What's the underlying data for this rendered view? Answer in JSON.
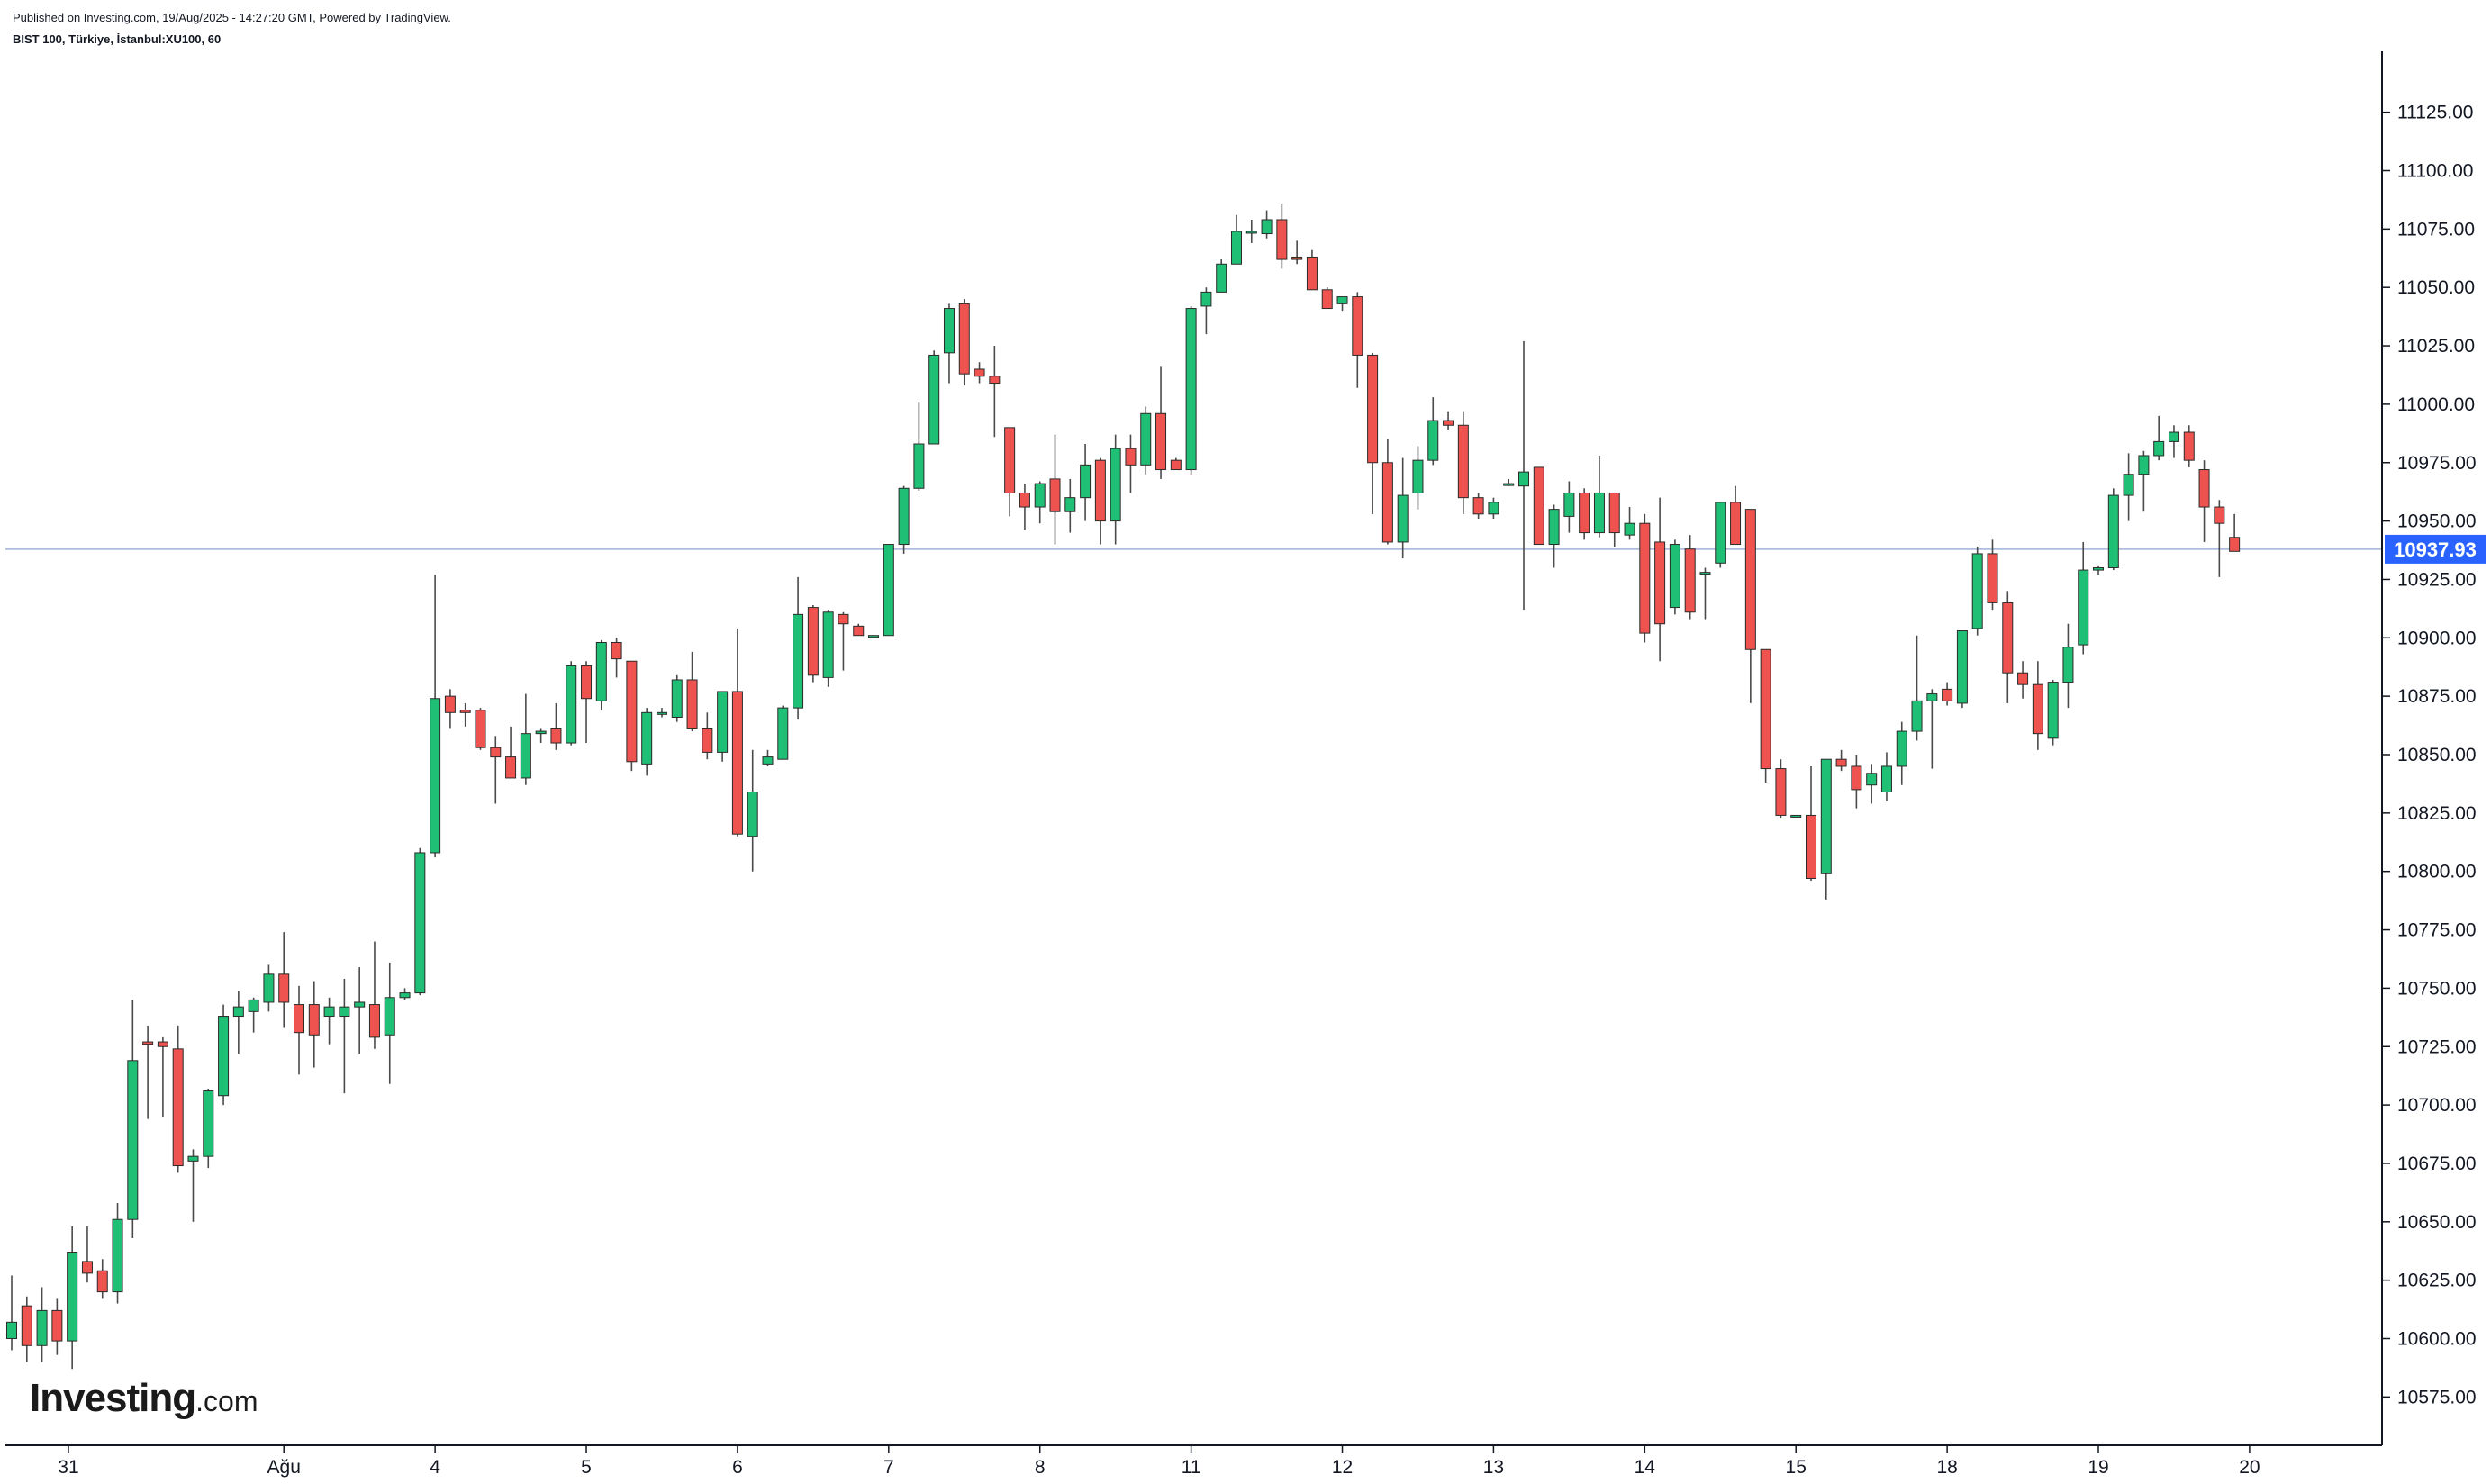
{
  "header": {
    "published": "Published on Investing.com, 19/Aug/2025 - 14:27:20 GMT, Powered by TradingView.",
    "instrument": "BIST 100, Türkiye, İstanbul:XU100, 60"
  },
  "logo": {
    "brand": "Investing",
    "suffix": ".com"
  },
  "colors": {
    "up": "#1fbf75",
    "down": "#ef5350",
    "wick": "#4a4a4a",
    "price_line": "#9fb3d9",
    "price_tag": "#2962ff"
  },
  "chart_data": {
    "type": "candlestick",
    "title": "",
    "xlabel": "",
    "ylabel": "",
    "ylim": [
      10550,
      11150
    ],
    "y_ticks": [
      "10575.00",
      "10600.00",
      "10625.00",
      "10650.00",
      "10675.00",
      "10700.00",
      "10725.00",
      "10750.00",
      "10775.00",
      "10800.00",
      "10825.00",
      "10850.00",
      "10875.00",
      "10900.00",
      "10925.00",
      "10950.00",
      "10975.00",
      "11000.00",
      "11025.00",
      "11050.00",
      "11075.00",
      "11100.00",
      "11125.00"
    ],
    "x_ticks": [
      {
        "label": "31",
        "index": 3.75
      },
      {
        "label": "Ağu",
        "index": 18.0
      },
      {
        "label": "4",
        "index": 28.0
      },
      {
        "label": "5",
        "index": 38.0
      },
      {
        "label": "6",
        "index": 48.0
      },
      {
        "label": "7",
        "index": 58.0
      },
      {
        "label": "8",
        "index": 68.0
      },
      {
        "label": "11",
        "index": 78.0
      },
      {
        "label": "12",
        "index": 88.0
      },
      {
        "label": "13",
        "index": 98.0
      },
      {
        "label": "14",
        "index": 108.0
      },
      {
        "label": "15",
        "index": 118.0
      },
      {
        "label": "18",
        "index": 128.0
      },
      {
        "label": "19",
        "index": 138.0
      },
      {
        "label": "20",
        "index": 148.0
      }
    ],
    "last_price": 10937.93,
    "last_price_label": "10937.93",
    "ohlc": [
      [
        10600,
        10627,
        10595,
        10607
      ],
      [
        10614,
        10618,
        10590,
        10597
      ],
      [
        10597,
        10622,
        10590,
        10612
      ],
      [
        10612,
        10617,
        10593,
        10599
      ],
      [
        10599,
        10648,
        10587,
        10637
      ],
      [
        10633,
        10648,
        10624,
        10628
      ],
      [
        10629,
        10634,
        10617,
        10620
      ],
      [
        10620,
        10658,
        10615,
        10651
      ],
      [
        10651,
        10745,
        10643,
        10719
      ],
      [
        10727,
        10734,
        10694,
        10726
      ],
      [
        10727,
        10729,
        10695,
        10725
      ],
      [
        10724,
        10734,
        10671,
        10674
      ],
      [
        10676,
        10681,
        10650,
        10678
      ],
      [
        10678,
        10707,
        10673,
        10706
      ],
      [
        10704,
        10743,
        10700,
        10738
      ],
      [
        10738,
        10749,
        10722,
        10742
      ],
      [
        10740,
        10746,
        10731,
        10745
      ],
      [
        10744,
        10760,
        10740,
        10756
      ],
      [
        10756,
        10774,
        10733,
        10744
      ],
      [
        10743,
        10751,
        10713,
        10731
      ],
      [
        10743,
        10753,
        10716,
        10730
      ],
      [
        10738,
        10746,
        10726,
        10742
      ],
      [
        10738,
        10754,
        10705,
        10742
      ],
      [
        10742,
        10759,
        10722,
        10744
      ],
      [
        10743,
        10770,
        10724,
        10729
      ],
      [
        10730,
        10761,
        10709,
        10746
      ],
      [
        10746,
        10750,
        10745,
        10748
      ],
      [
        10748,
        10810,
        10747,
        10808
      ],
      [
        10808,
        10927,
        10806,
        10874
      ],
      [
        10875,
        10878,
        10861,
        10868
      ],
      [
        10869,
        10872,
        10862,
        10868
      ],
      [
        10869,
        10870,
        10852,
        10853
      ],
      [
        10853,
        10858,
        10829,
        10849
      ],
      [
        10849,
        10862,
        10840,
        10840
      ],
      [
        10840,
        10876,
        10837,
        10859
      ],
      [
        10859,
        10861,
        10855,
        10860
      ],
      [
        10861,
        10872,
        10852,
        10855
      ],
      [
        10855,
        10890,
        10854,
        10888
      ],
      [
        10888,
        10890,
        10855,
        10874
      ],
      [
        10873,
        10899,
        10869,
        10898
      ],
      [
        10898,
        10900,
        10883,
        10891
      ],
      [
        10890,
        10890,
        10843,
        10847
      ],
      [
        10846,
        10870,
        10841,
        10868
      ],
      [
        10868,
        10870,
        10866,
        10868
      ],
      [
        10866,
        10884,
        10864,
        10882
      ],
      [
        10882,
        10894,
        10860,
        10861
      ],
      [
        10861,
        10868,
        10848,
        10851
      ],
      [
        10851,
        10877,
        10847,
        10877
      ],
      [
        10877,
        10904,
        10815,
        10816
      ],
      [
        10815,
        10852,
        10800,
        10834
      ],
      [
        10846,
        10852,
        10845,
        10849
      ],
      [
        10848,
        10871,
        10848,
        10870
      ],
      [
        10870,
        10926,
        10865,
        10910
      ],
      [
        10913,
        10914,
        10881,
        10884
      ],
      [
        10883,
        10912,
        10879,
        10911
      ],
      [
        10910,
        10911,
        10886,
        10906
      ],
      [
        10905,
        10906,
        10901,
        10901
      ],
      [
        10901,
        10901,
        10901,
        10901
      ],
      [
        10901,
        10940,
        10901,
        10940
      ],
      [
        10940,
        10965,
        10936,
        10964
      ],
      [
        10964,
        11001,
        10963,
        10983
      ],
      [
        10983,
        11023,
        10983,
        11021
      ],
      [
        11022,
        11043,
        11009,
        11041
      ],
      [
        11043,
        11045,
        11008,
        11013
      ],
      [
        11015,
        11018,
        11009,
        11012
      ],
      [
        11012,
        11025,
        10986,
        11009
      ],
      [
        10990,
        10990,
        10952,
        10962
      ],
      [
        10962,
        10966,
        10946,
        10956
      ],
      [
        10956,
        10967,
        10949,
        10966
      ],
      [
        10968,
        10987,
        10940,
        10954
      ],
      [
        10954,
        10968,
        10945,
        10960
      ],
      [
        10960,
        10983,
        10950,
        10974
      ],
      [
        10976,
        10977,
        10940,
        10950
      ],
      [
        10950,
        10987,
        10940,
        10981
      ],
      [
        10981,
        10987,
        10962,
        10974
      ],
      [
        10974,
        10999,
        10970,
        10996
      ],
      [
        10996,
        11016,
        10968,
        10972
      ],
      [
        10976,
        10977,
        10972,
        10972
      ],
      [
        10972,
        11042,
        10970,
        11041
      ],
      [
        11042,
        11050,
        11030,
        11048
      ],
      [
        11048,
        11062,
        11048,
        11060
      ],
      [
        11060,
        11081,
        11060,
        11074
      ],
      [
        11074,
        11079,
        11069,
        11074
      ],
      [
        11073,
        11083,
        11071,
        11079
      ],
      [
        11079,
        11086,
        11058,
        11062
      ],
      [
        11063,
        11070,
        11060,
        11062
      ],
      [
        11063,
        11066,
        11049,
        11049
      ],
      [
        11049,
        11050,
        11041,
        11041
      ],
      [
        11043,
        11046,
        11040,
        11046
      ],
      [
        11046,
        11048,
        11007,
        11021
      ],
      [
        11021,
        11022,
        10953,
        10975
      ],
      [
        10975,
        10985,
        10940,
        10941
      ],
      [
        10941,
        10977,
        10934,
        10961
      ],
      [
        10962,
        10982,
        10955,
        10976
      ],
      [
        10976,
        11003,
        10974,
        10993
      ],
      [
        10993,
        10997,
        10989,
        10991
      ],
      [
        10991,
        10997,
        10953,
        10960
      ],
      [
        10960,
        10962,
        10951,
        10953
      ],
      [
        10953,
        10960,
        10951,
        10958
      ],
      [
        10966,
        10968,
        10965,
        10966
      ],
      [
        10965,
        11027,
        10912,
        10971
      ],
      [
        10973,
        10973,
        10940,
        10940
      ],
      [
        10940,
        10957,
        10930,
        10955
      ],
      [
        10952,
        10967,
        10945,
        10962
      ],
      [
        10962,
        10964,
        10942,
        10945
      ],
      [
        10945,
        10978,
        10943,
        10962
      ],
      [
        10962,
        10962,
        10939,
        10945
      ],
      [
        10944,
        10956,
        10942,
        10949
      ],
      [
        10949,
        10953,
        10898,
        10902
      ],
      [
        10941,
        10960,
        10890,
        10906
      ],
      [
        10913,
        10942,
        10910,
        10940
      ],
      [
        10938,
        10944,
        10908,
        10911
      ],
      [
        10928,
        10930,
        10908,
        10928
      ],
      [
        10932,
        10958,
        10930,
        10958
      ],
      [
        10958,
        10965,
        10941,
        10940
      ],
      [
        10955,
        10955,
        10872,
        10895
      ],
      [
        10895,
        10895,
        10838,
        10844
      ],
      [
        10844,
        10848,
        10823,
        10824
      ],
      [
        10824,
        10824,
        10824,
        10824
      ],
      [
        10824,
        10845,
        10796,
        10797
      ],
      [
        10799,
        10848,
        10788,
        10848
      ],
      [
        10848,
        10852,
        10843,
        10845
      ],
      [
        10845,
        10850,
        10827,
        10835
      ],
      [
        10837,
        10846,
        10829,
        10842
      ],
      [
        10834,
        10851,
        10830,
        10845
      ],
      [
        10845,
        10864,
        10837,
        10860
      ],
      [
        10860,
        10901,
        10856,
        10873
      ],
      [
        10873,
        10878,
        10844,
        10876
      ],
      [
        10878,
        10881,
        10871,
        10873
      ],
      [
        10872,
        10902,
        10870,
        10903
      ],
      [
        10904,
        10939,
        10901,
        10936
      ],
      [
        10936,
        10942,
        10912,
        10915
      ],
      [
        10915,
        10920,
        10872,
        10885
      ],
      [
        10885,
        10890,
        10874,
        10880
      ],
      [
        10880,
        10890,
        10852,
        10859
      ],
      [
        10857,
        10882,
        10854,
        10881
      ],
      [
        10881,
        10906,
        10870,
        10896
      ],
      [
        10897,
        10941,
        10893,
        10929
      ],
      [
        10929,
        10931,
        10927,
        10930
      ],
      [
        10930,
        10964,
        10929,
        10961
      ],
      [
        10961,
        10979,
        10950,
        10970
      ],
      [
        10970,
        10980,
        10954,
        10978
      ],
      [
        10978,
        10995,
        10976,
        10984
      ],
      [
        10984,
        10991,
        10977,
        10988
      ],
      [
        10988,
        10991,
        10973,
        10976
      ],
      [
        10972,
        10976,
        10941,
        10956
      ],
      [
        10956,
        10959,
        10926,
        10949
      ],
      [
        10943,
        10953,
        10937,
        10937
      ]
    ]
  }
}
